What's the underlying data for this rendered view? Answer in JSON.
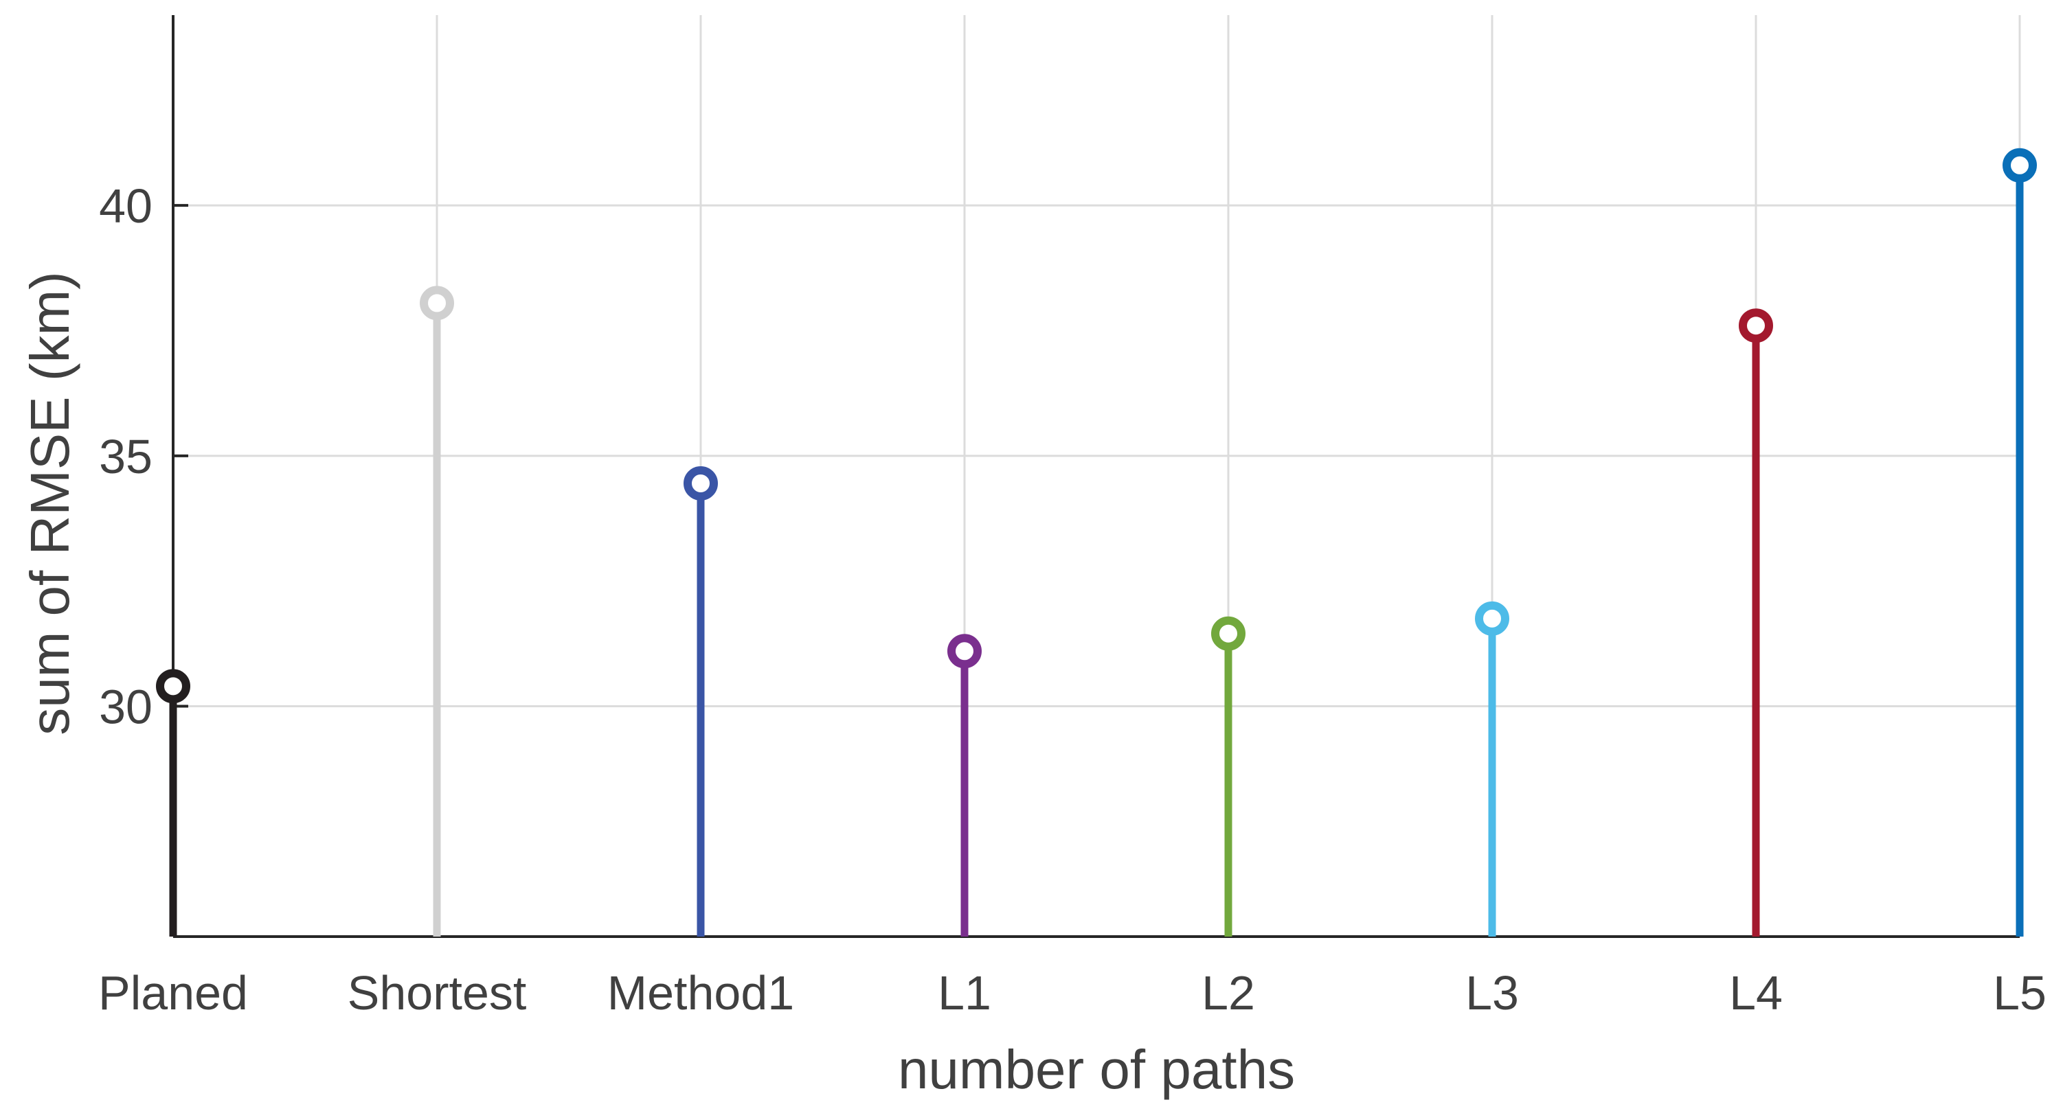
{
  "chart_data": {
    "type": "stem",
    "title": "",
    "xlabel": "number of paths",
    "ylabel": "sum of RMSE (km)",
    "categories": [
      "Planed",
      "Shortest",
      "Method1",
      "L1",
      "L2",
      "L3",
      "L4",
      "L5"
    ],
    "values": [
      30.4,
      38.05,
      34.45,
      31.1,
      31.45,
      31.75,
      37.6,
      40.8
    ],
    "colors": [
      "#231f20",
      "#d0d0d0",
      "#3a55a6",
      "#7a2f8e",
      "#72a83d",
      "#4dbbe8",
      "#a3192e",
      "#0a6fb8"
    ],
    "ylim": [
      25.4,
      43.8
    ],
    "yticks": [
      30,
      35,
      40
    ],
    "grid": true
  }
}
